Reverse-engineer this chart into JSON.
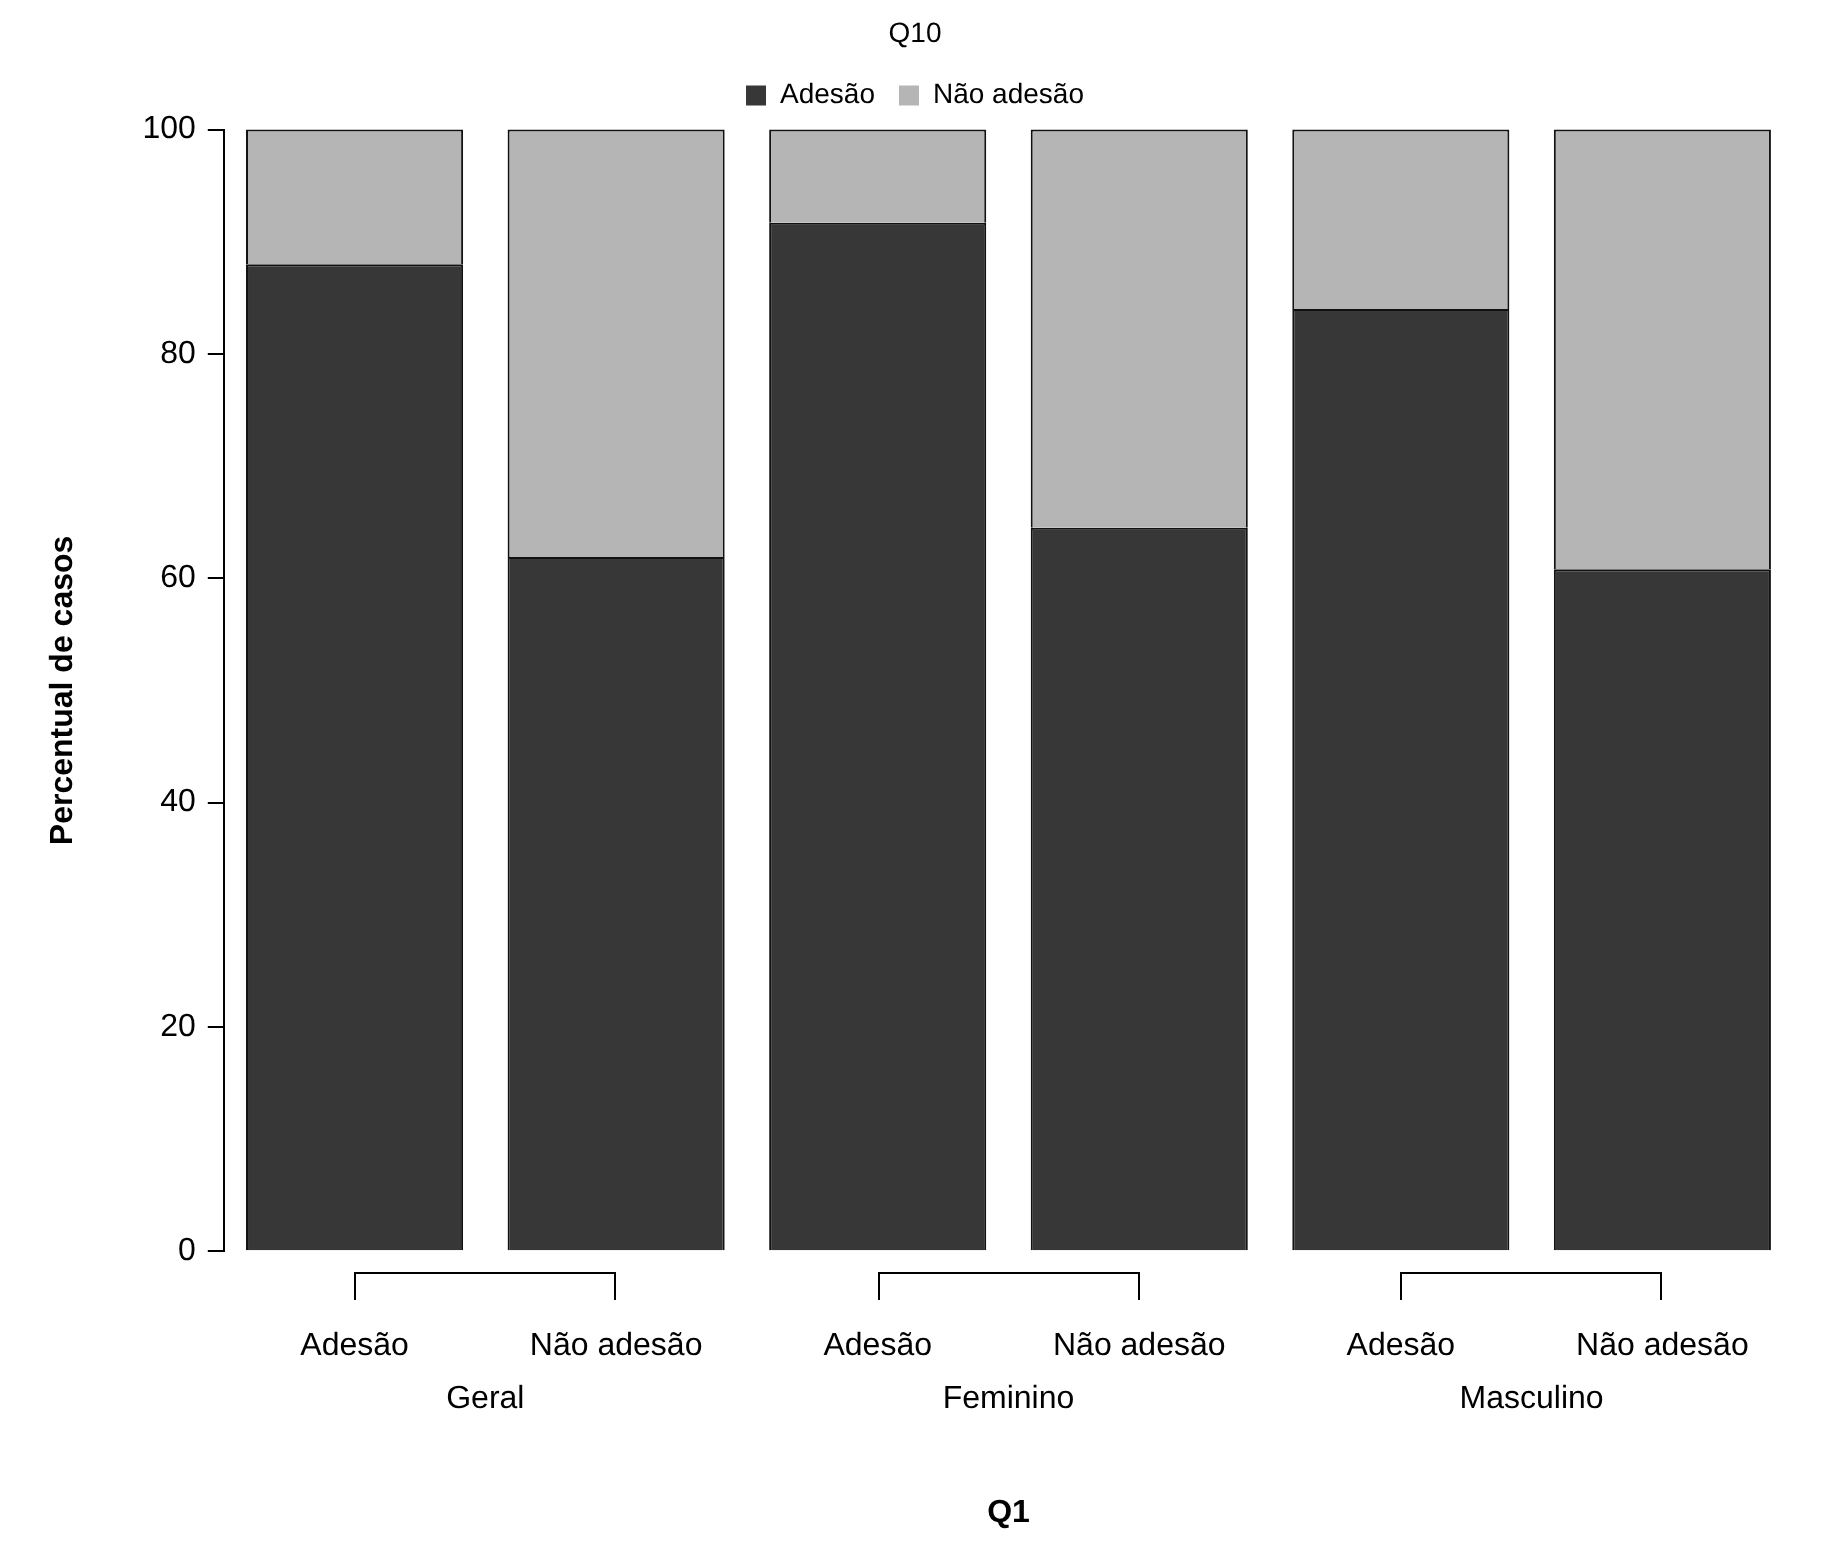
{
  "chart_data": {
    "type": "bar",
    "stacked": true,
    "legend_title": "Q10",
    "legend": "top",
    "xlabel": "Q1",
    "ylabel": "Percentual de casos",
    "categories": [
      "Adesão",
      "Não adesão",
      "Adesão",
      "Não adesão",
      "Adesão",
      "Não adesão"
    ],
    "annotations": [
      "Geral",
      "Feminino",
      "Masculino"
    ],
    "series": [
      {
        "name": "Adesão",
        "color": "#373737",
        "values": [
          88.0,
          61.9,
          91.7,
          64.5,
          84.0,
          60.8
        ]
      },
      {
        "name": "Não adesão",
        "color": "#b5b5b5",
        "values": [
          12.0,
          38.1,
          8.3,
          35.5,
          16.0,
          39.2
        ]
      }
    ],
    "ylim": [
      0,
      100
    ],
    "yticks": [
      0,
      20,
      40,
      60,
      80,
      100
    ],
    "grid": false
  }
}
